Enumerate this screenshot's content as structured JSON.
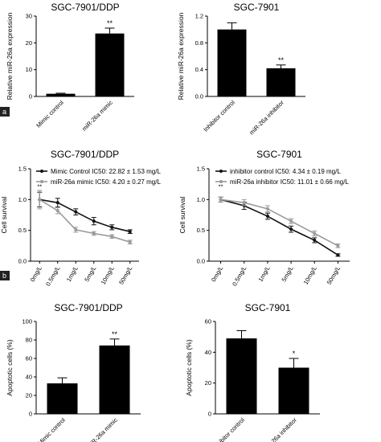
{
  "panel_labels": [
    "a",
    "b"
  ],
  "chart_data": [
    {
      "type": "bar",
      "title": "SGC-7901/DDP",
      "ylabel": "Relative miR-26a expression",
      "ylim": [
        0,
        30
      ],
      "yticks": [
        "0",
        "10",
        "20",
        "30"
      ],
      "categories": [
        "Mimic control",
        "miR-26a mimic"
      ],
      "values": [
        1.0,
        23.5
      ],
      "errors": [
        0.2,
        2.0
      ],
      "significance": [
        "",
        "**"
      ],
      "bar_color": "#000000"
    },
    {
      "type": "bar",
      "title": "SGC-7901",
      "ylabel": "Relative miR-26a expression",
      "ylim": [
        0,
        1.2
      ],
      "yticks": [
        "0.0",
        "0.4",
        "0.8",
        "1.2"
      ],
      "categories": [
        "Inhibitor control",
        "miR-26a inhibitor"
      ],
      "values": [
        1.0,
        0.42
      ],
      "errors": [
        0.1,
        0.05
      ],
      "significance": [
        "",
        "**"
      ],
      "bar_color": "#000000"
    },
    {
      "type": "line",
      "title": "SGC-7901/DDP",
      "ylabel": "Cell survival",
      "ylim": [
        0,
        1.5
      ],
      "yticks": [
        "0.0",
        "0.5",
        "1.0",
        "1.5"
      ],
      "categories": [
        "0mg/L",
        "0.5mg/L",
        "1mg/L",
        "5mg/L",
        "10mg/L",
        "50mg/L"
      ],
      "series": [
        {
          "name": "Mimic Control IC50: 22.82 ± 1.53 mg/L",
          "values": [
            1.0,
            0.95,
            0.8,
            0.65,
            0.55,
            0.48
          ],
          "errors": [
            0.12,
            0.07,
            0.05,
            0.06,
            0.04,
            0.03
          ],
          "color": "#111111"
        },
        {
          "name": "miR-26a mimic IC50: 4.20 ± 0.27 mg/L",
          "values": [
            1.0,
            0.82,
            0.51,
            0.45,
            0.4,
            0.31
          ],
          "errors": [
            0.15,
            0.05,
            0.04,
            0.03,
            0.03,
            0.03
          ],
          "color": "#9a9a9a"
        }
      ],
      "annotations": [
        "**"
      ]
    },
    {
      "type": "line",
      "title": "SGC-7901",
      "ylabel": "Cell survival",
      "ylim": [
        0,
        1.5
      ],
      "yticks": [
        "0.0",
        "0.5",
        "1.0",
        "1.5"
      ],
      "categories": [
        "0mg/L",
        "0.5mg/L",
        "1mg/L",
        "5mg/L",
        "10mg/L",
        "50mg/L"
      ],
      "series": [
        {
          "name": "inhibitor control IC50: 4.34 ± 0.19 mg/L",
          "values": [
            1.0,
            0.9,
            0.73,
            0.52,
            0.34,
            0.1
          ],
          "errors": [
            0.04,
            0.06,
            0.05,
            0.05,
            0.04,
            0.02
          ],
          "color": "#111111"
        },
        {
          "name": "miR-26a inhibitor IC50: 11.01 ± 0.66 mg/L",
          "values": [
            1.0,
            0.95,
            0.85,
            0.65,
            0.45,
            0.25
          ],
          "errors": [
            0.04,
            0.05,
            0.05,
            0.04,
            0.04,
            0.03
          ],
          "color": "#9a9a9a"
        }
      ],
      "annotations": [
        "**"
      ]
    },
    {
      "type": "bar",
      "title": "SGC-7901/DDP",
      "ylabel": "Apoptotic cells (%)",
      "ylim": [
        0,
        100
      ],
      "yticks": [
        "0",
        "20",
        "40",
        "60",
        "80",
        "100"
      ],
      "categories": [
        "Mimic control",
        "miR-26a mimic"
      ],
      "values": [
        33,
        74
      ],
      "errors": [
        6,
        7
      ],
      "significance": [
        "",
        "**"
      ],
      "bar_color": "#000000"
    },
    {
      "type": "bar",
      "title": "SGC-7901",
      "ylabel": "Apoptotic cells (%)",
      "ylim": [
        0,
        60
      ],
      "yticks": [
        "0",
        "20",
        "40",
        "60"
      ],
      "categories": [
        "Inhibitor control",
        "miR-26a inhibitor"
      ],
      "values": [
        49,
        30
      ],
      "errors": [
        5,
        6
      ],
      "significance": [
        "",
        "*"
      ],
      "bar_color": "#000000"
    }
  ]
}
